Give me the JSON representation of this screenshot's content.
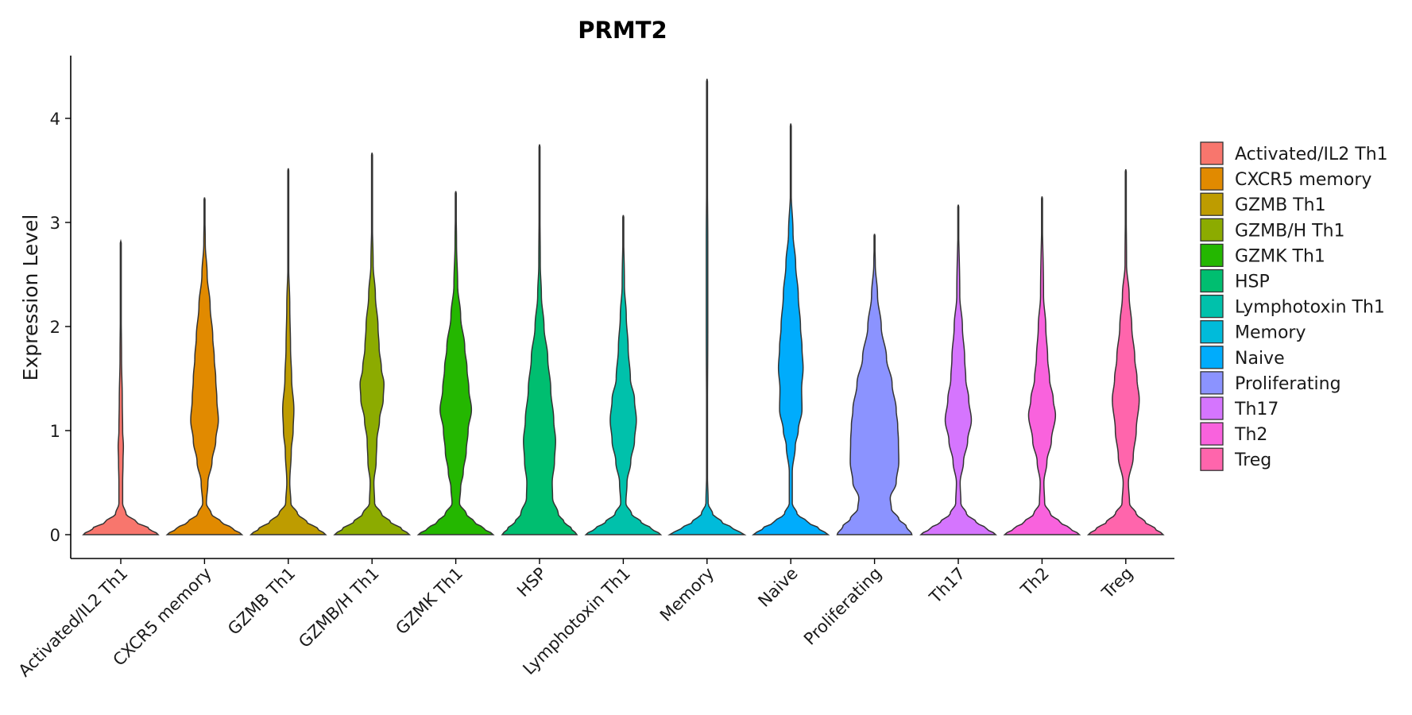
{
  "chart_data": {
    "type": "violin",
    "title": "PRMT2",
    "xlabel": "",
    "ylabel": "Expression Level",
    "ylim": [
      -0.22,
      4.62
    ],
    "yticks": [
      0,
      1,
      2,
      3,
      4
    ],
    "ytick_labels": [
      "0",
      "1",
      "2",
      "3",
      "4"
    ],
    "legend_position": "right",
    "categories": [
      {
        "name": "Activated/IL2 Th1",
        "color": "#F8766D",
        "max": 2.82,
        "profile": [
          [
            0.0,
            1.0
          ],
          [
            0.06,
            0.75
          ],
          [
            0.12,
            0.42
          ],
          [
            0.2,
            0.14
          ],
          [
            0.3,
            0.05
          ],
          [
            0.5,
            0.05
          ],
          [
            0.7,
            0.06
          ],
          [
            0.85,
            0.07
          ],
          [
            1.0,
            0.05
          ],
          [
            1.3,
            0.04
          ],
          [
            1.7,
            0.02
          ],
          [
            2.2,
            0.01
          ],
          [
            2.82,
            0.0
          ]
        ]
      },
      {
        "name": "CXCR5 memory",
        "color": "#E18A00",
        "max": 3.24,
        "profile": [
          [
            0.0,
            1.0
          ],
          [
            0.06,
            0.75
          ],
          [
            0.12,
            0.45
          ],
          [
            0.2,
            0.18
          ],
          [
            0.3,
            0.05
          ],
          [
            0.5,
            0.09
          ],
          [
            0.7,
            0.2
          ],
          [
            0.9,
            0.3
          ],
          [
            1.1,
            0.37
          ],
          [
            1.3,
            0.33
          ],
          [
            1.5,
            0.3
          ],
          [
            1.7,
            0.26
          ],
          [
            1.9,
            0.22
          ],
          [
            2.2,
            0.15
          ],
          [
            2.5,
            0.07
          ],
          [
            2.8,
            0.02
          ],
          [
            3.24,
            0.0
          ]
        ]
      },
      {
        "name": "GZMB Th1",
        "color": "#BE9C00",
        "max": 3.52,
        "profile": [
          [
            0.0,
            1.0
          ],
          [
            0.06,
            0.78
          ],
          [
            0.12,
            0.5
          ],
          [
            0.2,
            0.25
          ],
          [
            0.3,
            0.07
          ],
          [
            0.5,
            0.04
          ],
          [
            0.8,
            0.08
          ],
          [
            1.0,
            0.13
          ],
          [
            1.2,
            0.15
          ],
          [
            1.5,
            0.09
          ],
          [
            1.8,
            0.06
          ],
          [
            2.2,
            0.04
          ],
          [
            2.6,
            0.01
          ],
          [
            3.52,
            0.0
          ]
        ]
      },
      {
        "name": "GZMB/H Th1",
        "color": "#8CAB00",
        "max": 3.67,
        "profile": [
          [
            0.0,
            1.0
          ],
          [
            0.06,
            0.78
          ],
          [
            0.12,
            0.5
          ],
          [
            0.2,
            0.25
          ],
          [
            0.3,
            0.07
          ],
          [
            0.5,
            0.05
          ],
          [
            0.7,
            0.11
          ],
          [
            0.9,
            0.13
          ],
          [
            1.1,
            0.2
          ],
          [
            1.3,
            0.3
          ],
          [
            1.45,
            0.32
          ],
          [
            1.6,
            0.25
          ],
          [
            1.8,
            0.19
          ],
          [
            2.0,
            0.16
          ],
          [
            2.3,
            0.09
          ],
          [
            2.6,
            0.03
          ],
          [
            3.0,
            0.01
          ],
          [
            3.67,
            0.0
          ]
        ]
      },
      {
        "name": "GZMK Th1",
        "color": "#24B700",
        "max": 3.3,
        "profile": [
          [
            0.0,
            1.0
          ],
          [
            0.06,
            0.75
          ],
          [
            0.12,
            0.5
          ],
          [
            0.2,
            0.28
          ],
          [
            0.3,
            0.1
          ],
          [
            0.45,
            0.13
          ],
          [
            0.6,
            0.2
          ],
          [
            0.8,
            0.28
          ],
          [
            1.0,
            0.33
          ],
          [
            1.2,
            0.42
          ],
          [
            1.4,
            0.35
          ],
          [
            1.6,
            0.3
          ],
          [
            1.8,
            0.24
          ],
          [
            2.1,
            0.13
          ],
          [
            2.4,
            0.05
          ],
          [
            2.8,
            0.02
          ],
          [
            3.3,
            0.0
          ]
        ]
      },
      {
        "name": "HSP",
        "color": "#00BE70",
        "max": 3.75,
        "profile": [
          [
            0.0,
            1.0
          ],
          [
            0.06,
            0.85
          ],
          [
            0.12,
            0.66
          ],
          [
            0.2,
            0.5
          ],
          [
            0.35,
            0.35
          ],
          [
            0.5,
            0.34
          ],
          [
            0.7,
            0.4
          ],
          [
            0.9,
            0.43
          ],
          [
            1.1,
            0.38
          ],
          [
            1.4,
            0.3
          ],
          [
            1.7,
            0.22
          ],
          [
            2.0,
            0.12
          ],
          [
            2.3,
            0.05
          ],
          [
            2.6,
            0.02
          ],
          [
            3.2,
            0.01
          ],
          [
            3.75,
            0.0
          ]
        ]
      },
      {
        "name": "Lymphotoxin Th1",
        "color": "#00C1AB",
        "max": 3.07,
        "profile": [
          [
            0.0,
            1.0
          ],
          [
            0.06,
            0.75
          ],
          [
            0.12,
            0.48
          ],
          [
            0.2,
            0.22
          ],
          [
            0.3,
            0.07
          ],
          [
            0.5,
            0.1
          ],
          [
            0.7,
            0.2
          ],
          [
            0.9,
            0.3
          ],
          [
            1.1,
            0.35
          ],
          [
            1.3,
            0.3
          ],
          [
            1.5,
            0.19
          ],
          [
            1.8,
            0.13
          ],
          [
            2.1,
            0.08
          ],
          [
            2.4,
            0.03
          ],
          [
            3.07,
            0.0
          ]
        ]
      },
      {
        "name": "Memory",
        "color": "#00BBDA",
        "max": 4.38,
        "profile": [
          [
            0.0,
            1.0
          ],
          [
            0.06,
            0.7
          ],
          [
            0.12,
            0.4
          ],
          [
            0.2,
            0.15
          ],
          [
            0.3,
            0.03
          ],
          [
            0.6,
            0.01
          ],
          [
            1.0,
            0.01
          ],
          [
            2.0,
            0.02
          ],
          [
            2.8,
            0.02
          ],
          [
            3.5,
            0.01
          ],
          [
            4.38,
            0.0
          ]
        ]
      },
      {
        "name": "Naive",
        "color": "#00ACFC",
        "max": 3.95,
        "profile": [
          [
            0.0,
            1.0
          ],
          [
            0.06,
            0.75
          ],
          [
            0.12,
            0.45
          ],
          [
            0.2,
            0.17
          ],
          [
            0.3,
            0.04
          ],
          [
            0.6,
            0.04
          ],
          [
            0.85,
            0.12
          ],
          [
            1.0,
            0.2
          ],
          [
            1.2,
            0.3
          ],
          [
            1.4,
            0.29
          ],
          [
            1.6,
            0.33
          ],
          [
            1.8,
            0.3
          ],
          [
            2.0,
            0.26
          ],
          [
            2.3,
            0.2
          ],
          [
            2.6,
            0.13
          ],
          [
            2.9,
            0.06
          ],
          [
            3.3,
            0.01
          ],
          [
            3.95,
            0.0
          ]
        ]
      },
      {
        "name": "Proliferating",
        "color": "#8B93FF",
        "max": 2.89,
        "profile": [
          [
            0.0,
            1.0
          ],
          [
            0.08,
            0.85
          ],
          [
            0.15,
            0.65
          ],
          [
            0.25,
            0.45
          ],
          [
            0.35,
            0.42
          ],
          [
            0.5,
            0.58
          ],
          [
            0.7,
            0.65
          ],
          [
            0.9,
            0.64
          ],
          [
            1.05,
            0.62
          ],
          [
            1.2,
            0.58
          ],
          [
            1.45,
            0.47
          ],
          [
            1.7,
            0.32
          ],
          [
            2.0,
            0.18
          ],
          [
            2.3,
            0.08
          ],
          [
            2.6,
            0.02
          ],
          [
            2.89,
            0.0
          ]
        ]
      },
      {
        "name": "Th17",
        "color": "#D575FE",
        "max": 3.17,
        "profile": [
          [
            0.0,
            1.0
          ],
          [
            0.06,
            0.75
          ],
          [
            0.12,
            0.48
          ],
          [
            0.2,
            0.22
          ],
          [
            0.3,
            0.07
          ],
          [
            0.5,
            0.05
          ],
          [
            0.7,
            0.14
          ],
          [
            0.9,
            0.25
          ],
          [
            1.1,
            0.35
          ],
          [
            1.3,
            0.28
          ],
          [
            1.5,
            0.2
          ],
          [
            1.7,
            0.17
          ],
          [
            2.0,
            0.11
          ],
          [
            2.3,
            0.04
          ],
          [
            3.17,
            0.0
          ]
        ]
      },
      {
        "name": "Th2",
        "color": "#F962DD",
        "max": 3.25,
        "profile": [
          [
            0.0,
            1.0
          ],
          [
            0.06,
            0.75
          ],
          [
            0.12,
            0.48
          ],
          [
            0.2,
            0.22
          ],
          [
            0.3,
            0.07
          ],
          [
            0.5,
            0.05
          ],
          [
            0.7,
            0.13
          ],
          [
            0.9,
            0.25
          ],
          [
            1.15,
            0.36
          ],
          [
            1.3,
            0.3
          ],
          [
            1.5,
            0.2
          ],
          [
            1.7,
            0.15
          ],
          [
            2.0,
            0.1
          ],
          [
            2.3,
            0.04
          ],
          [
            3.25,
            0.0
          ]
        ]
      },
      {
        "name": "Treg",
        "color": "#FF65AC",
        "max": 3.51,
        "profile": [
          [
            0.0,
            1.0
          ],
          [
            0.06,
            0.78
          ],
          [
            0.12,
            0.52
          ],
          [
            0.2,
            0.28
          ],
          [
            0.3,
            0.1
          ],
          [
            0.5,
            0.07
          ],
          [
            0.75,
            0.2
          ],
          [
            1.0,
            0.28
          ],
          [
            1.3,
            0.36
          ],
          [
            1.5,
            0.3
          ],
          [
            1.7,
            0.24
          ],
          [
            2.0,
            0.16
          ],
          [
            2.3,
            0.09
          ],
          [
            2.6,
            0.02
          ],
          [
            3.51,
            0.0
          ]
        ]
      }
    ]
  }
}
